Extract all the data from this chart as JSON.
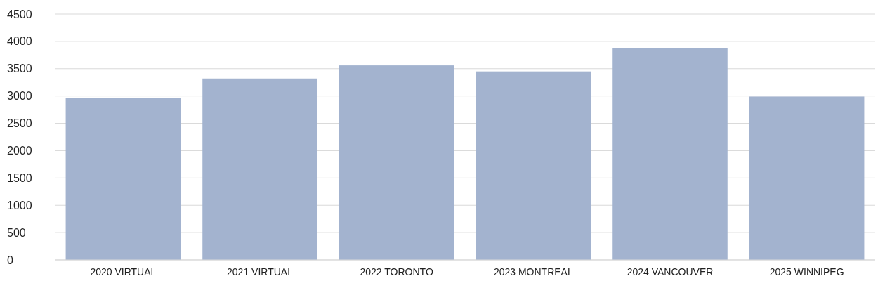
{
  "chart_data": {
    "type": "bar",
    "categories": [
      "2020 VIRTUAL",
      "2021 VIRTUAL",
      "2022 TORONTO",
      "2023 MONTREAL",
      "2024 VANCOUVER",
      "2025 WINNIPEG"
    ],
    "values": [
      2960,
      3320,
      3560,
      3450,
      3870,
      2990
    ],
    "color": "#a3b3cf",
    "ylim": [
      0,
      4500
    ],
    "yticks": [
      0,
      500,
      1000,
      1500,
      2000,
      2500,
      3000,
      3500,
      4000,
      4500
    ],
    "grid": "y"
  }
}
